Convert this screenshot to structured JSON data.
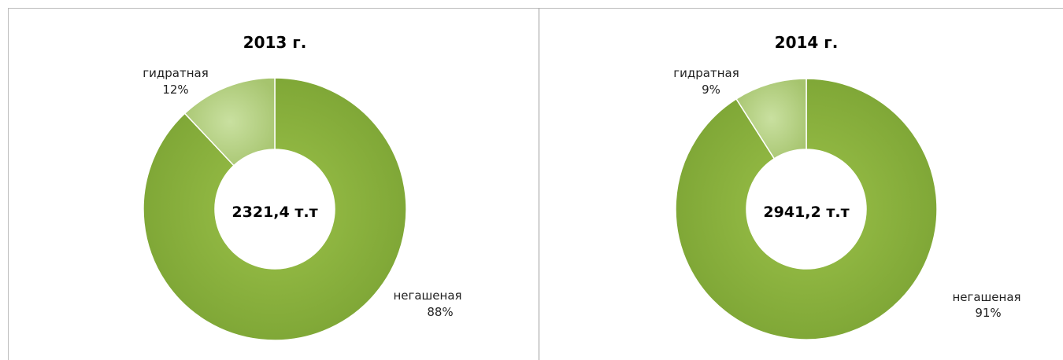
{
  "chart_data": [
    {
      "type": "pie",
      "title": "2013 г.",
      "center_label": "2321,4 т.т",
      "slices": [
        {
          "name": "негашеная",
          "value": 88,
          "label": "88%",
          "color": "#8db33d"
        },
        {
          "name": "гидратная",
          "value": 12,
          "label": "12%",
          "color": "#b9d48a"
        }
      ]
    },
    {
      "type": "pie",
      "title": "2014 г.",
      "center_label": "2941,2 т.т",
      "slices": [
        {
          "name": "негашеная",
          "value": 91,
          "label": "91%",
          "color": "#8db33d"
        },
        {
          "name": "гидратная",
          "value": 9,
          "label": "9%",
          "color": "#b9d48a"
        }
      ]
    }
  ]
}
